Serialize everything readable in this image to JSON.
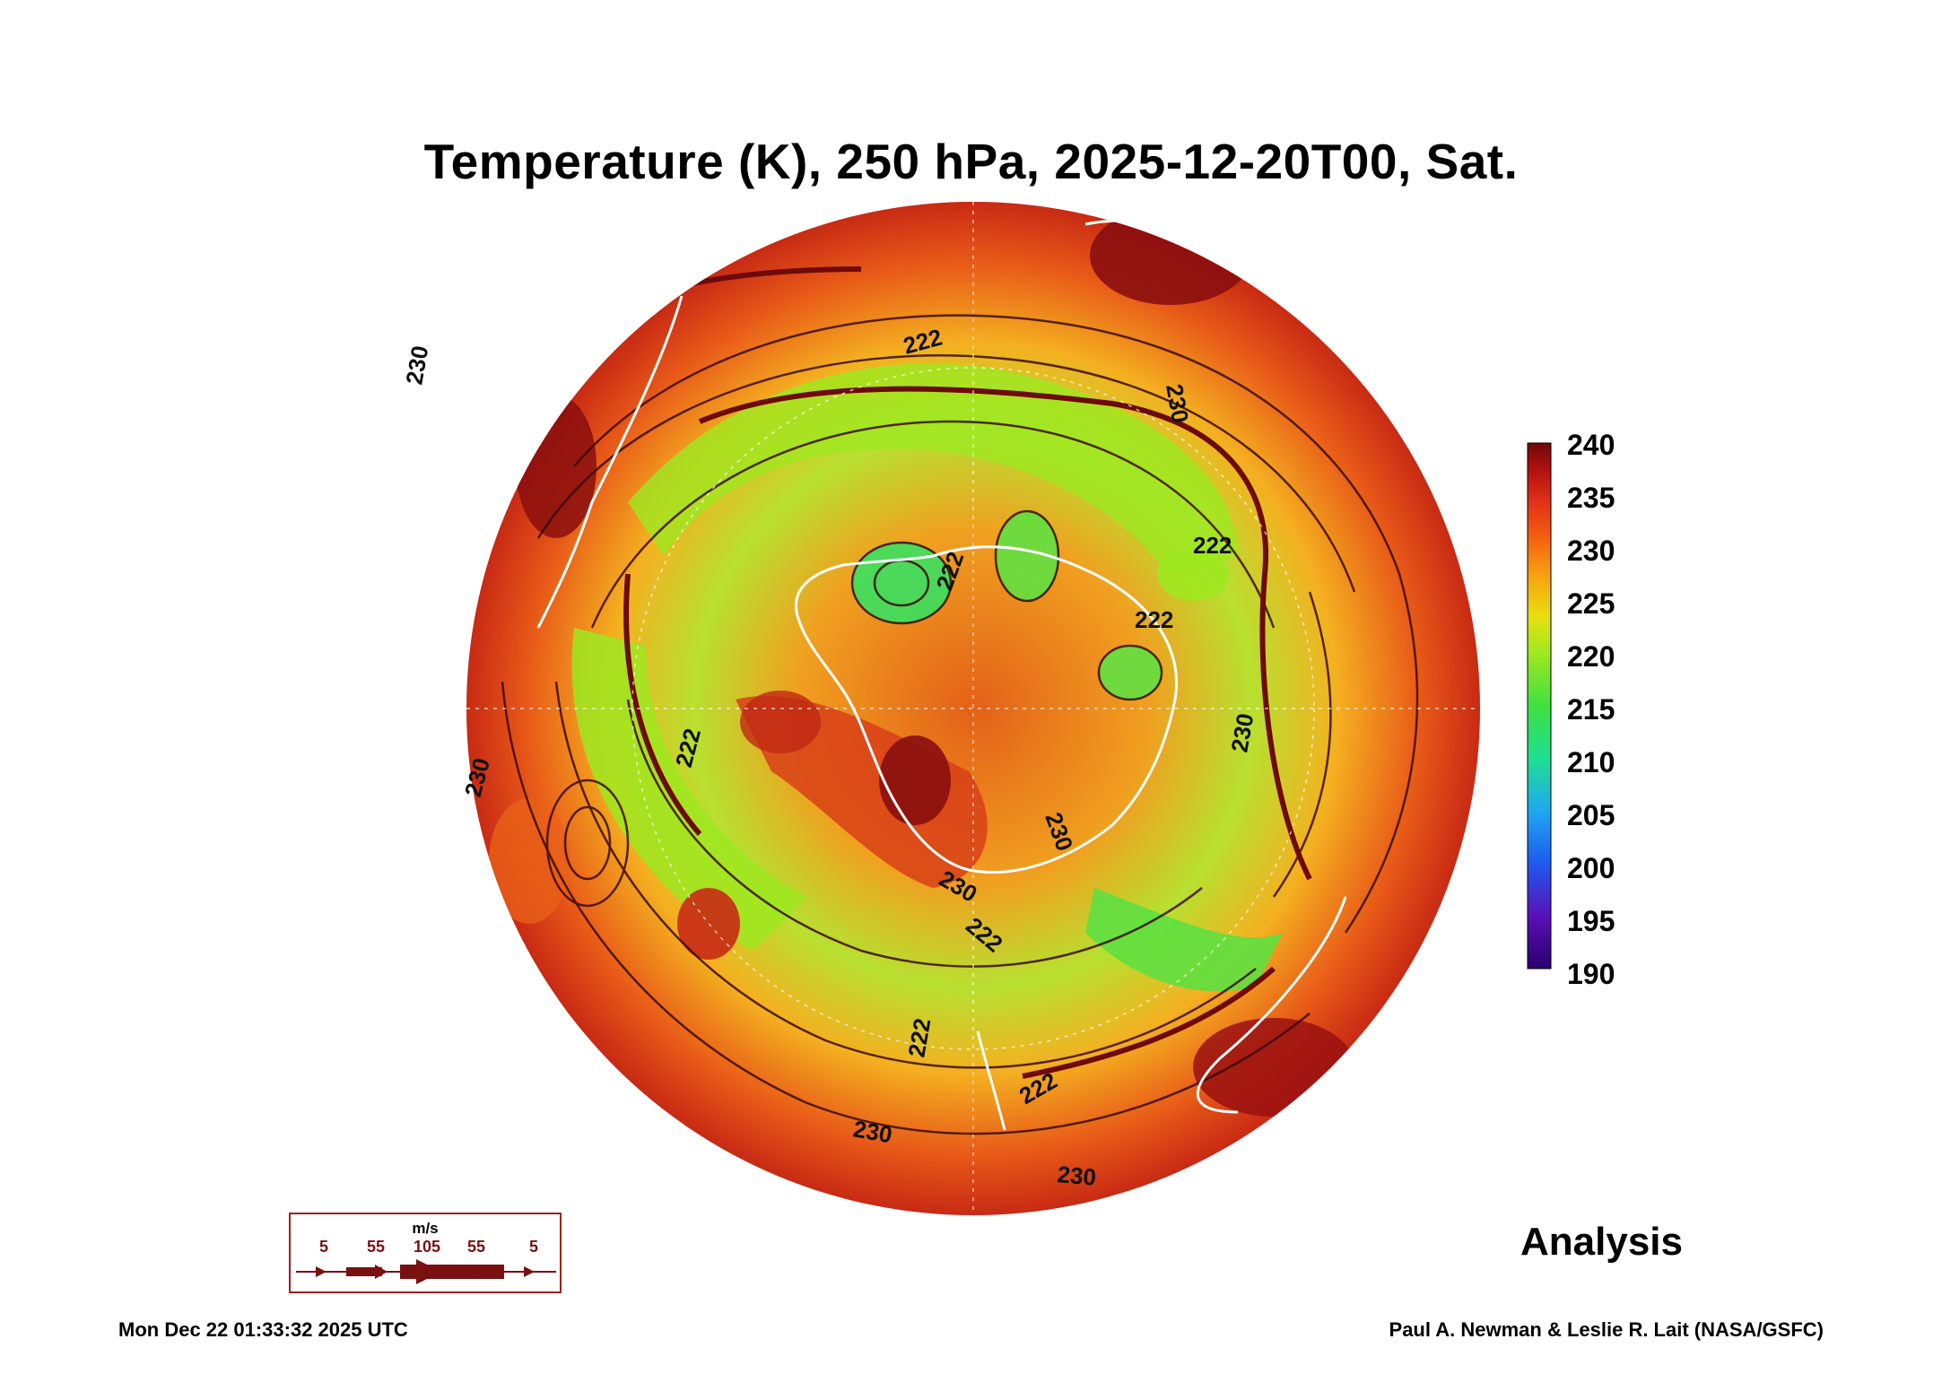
{
  "title": "Temperature (K), 250 hPa, 2025-12-20T00, Sat.",
  "colorbar": {
    "ticks": [
      "240",
      "235",
      "230",
      "225",
      "220",
      "215",
      "210",
      "205",
      "200",
      "195",
      "190"
    ],
    "colors": [
      "#2a006e",
      "#5a10b8",
      "#1e5af0",
      "#1fa8f0",
      "#20e090",
      "#3fe040",
      "#9ee820",
      "#e8e010",
      "#f8a010",
      "#f46010",
      "#e03018",
      "#b01010",
      "#700808"
    ]
  },
  "contour_labels": [
    "222",
    "222",
    "222",
    "222",
    "230",
    "230",
    "230",
    "230",
    "230",
    "230",
    "222",
    "222",
    "230",
    "222",
    "222",
    "230"
  ],
  "legend": {
    "unit": "m/s",
    "values": [
      "5",
      "55",
      "105",
      "55",
      "5"
    ]
  },
  "product": "Analysis",
  "timestamp": "Mon Dec 22 01:33:32 2025 UTC",
  "credit": "Paul A. Newman & Leslie R. Lait (NASA/GSFC)"
}
